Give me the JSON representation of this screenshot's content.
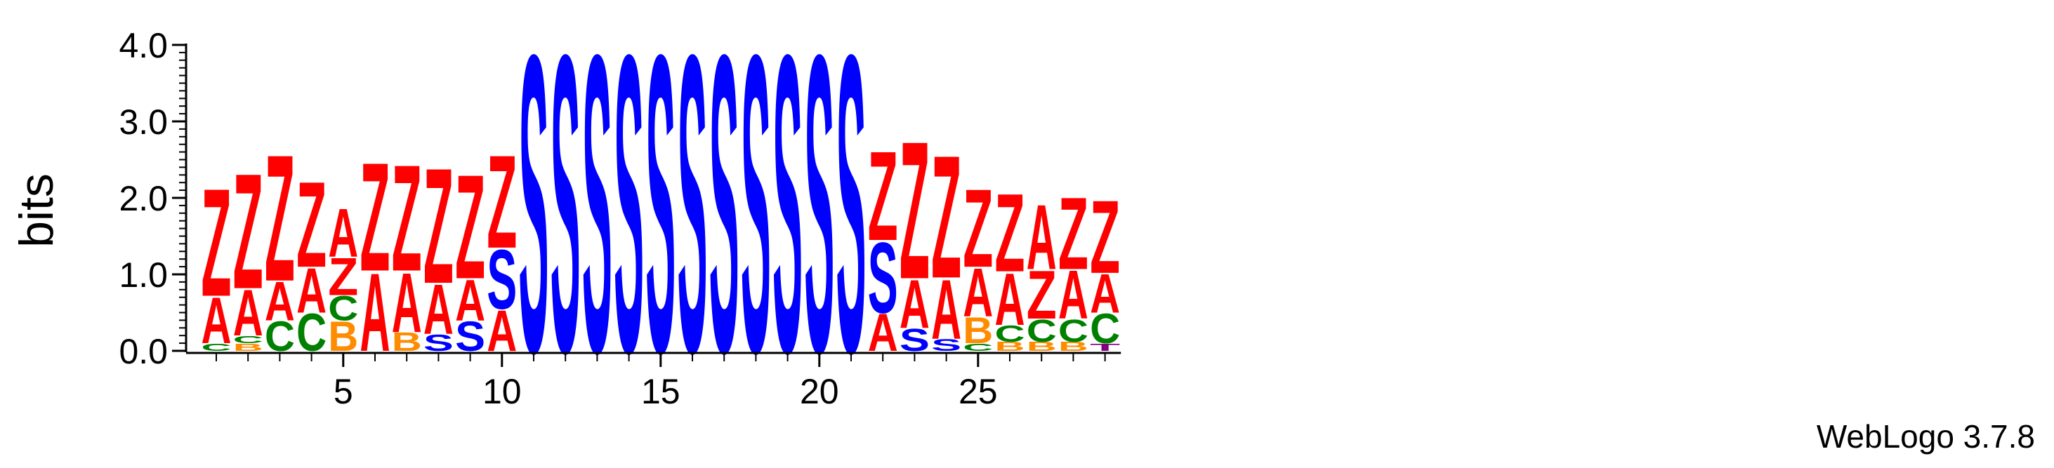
{
  "chart_data": {
    "type": "sequence-logo",
    "ylabel": "bits",
    "ylim": [
      0,
      4.0
    ],
    "y_ticks": [
      "0.0",
      "1.0",
      "2.0",
      "3.0",
      "4.0"
    ],
    "x_ticks": [
      "5",
      "10",
      "15",
      "20",
      "25"
    ],
    "x_tick_positions": [
      5,
      10,
      15,
      20,
      25
    ],
    "colors": {
      "Z": "#ff0000",
      "A": "#ff0000",
      "S": "#0000ff",
      "C": "#008000",
      "B": "#ff8c00",
      "T": "#800080"
    },
    "positions": [
      {
        "x": 1,
        "stack": [
          {
            "letter": "C",
            "bits": 0.1
          },
          {
            "letter": "A",
            "bits": 0.62
          },
          {
            "letter": "Z",
            "bits": 1.45
          }
        ]
      },
      {
        "x": 2,
        "stack": [
          {
            "letter": "B",
            "bits": 0.1
          },
          {
            "letter": "C",
            "bits": 0.1
          },
          {
            "letter": "A",
            "bits": 0.62
          },
          {
            "letter": "Z",
            "bits": 1.55
          }
        ]
      },
      {
        "x": 3,
        "stack": [
          {
            "letter": "C",
            "bits": 0.4
          },
          {
            "letter": "A",
            "bits": 0.52
          },
          {
            "letter": "Z",
            "bits": 1.7
          }
        ]
      },
      {
        "x": 4,
        "stack": [
          {
            "letter": "C",
            "bits": 0.5
          },
          {
            "letter": "A",
            "bits": 0.6
          },
          {
            "letter": "Z",
            "bits": 1.15
          }
        ]
      },
      {
        "x": 5,
        "stack": [
          {
            "letter": "B",
            "bits": 0.4
          },
          {
            "letter": "C",
            "bits": 0.33
          },
          {
            "letter": "Z",
            "bits": 0.5
          },
          {
            "letter": "A",
            "bits": 0.65
          }
        ]
      },
      {
        "x": 6,
        "stack": [
          {
            "letter": "A",
            "bits": 1.05
          },
          {
            "letter": "Z",
            "bits": 1.46
          }
        ]
      },
      {
        "x": 7,
        "stack": [
          {
            "letter": "B",
            "bits": 0.25
          },
          {
            "letter": "A",
            "bits": 0.8
          },
          {
            "letter": "Z",
            "bits": 1.43
          }
        ]
      },
      {
        "x": 8,
        "stack": [
          {
            "letter": "S",
            "bits": 0.22
          },
          {
            "letter": "A",
            "bits": 0.67
          },
          {
            "letter": "Z",
            "bits": 1.55
          }
        ]
      },
      {
        "x": 9,
        "stack": [
          {
            "letter": "S",
            "bits": 0.4
          },
          {
            "letter": "A",
            "bits": 0.55
          },
          {
            "letter": "Z",
            "bits": 1.4
          }
        ]
      },
      {
        "x": 10,
        "stack": [
          {
            "letter": "A",
            "bits": 0.55
          },
          {
            "letter": "S",
            "bits": 0.8
          },
          {
            "letter": "Z",
            "bits": 1.25
          }
        ]
      },
      {
        "x": 11,
        "stack": [
          {
            "letter": "S",
            "bits": 4.0
          }
        ]
      },
      {
        "x": 12,
        "stack": [
          {
            "letter": "S",
            "bits": 4.0
          }
        ]
      },
      {
        "x": 13,
        "stack": [
          {
            "letter": "S",
            "bits": 4.0
          }
        ]
      },
      {
        "x": 14,
        "stack": [
          {
            "letter": "S",
            "bits": 4.0
          }
        ]
      },
      {
        "x": 15,
        "stack": [
          {
            "letter": "S",
            "bits": 4.0
          }
        ]
      },
      {
        "x": 16,
        "stack": [
          {
            "letter": "S",
            "bits": 4.0
          }
        ]
      },
      {
        "x": 17,
        "stack": [
          {
            "letter": "S",
            "bits": 4.0
          }
        ]
      },
      {
        "x": 18,
        "stack": [
          {
            "letter": "S",
            "bits": 4.0
          }
        ]
      },
      {
        "x": 19,
        "stack": [
          {
            "letter": "S",
            "bits": 4.0
          }
        ]
      },
      {
        "x": 20,
        "stack": [
          {
            "letter": "S",
            "bits": 4.0
          }
        ]
      },
      {
        "x": 21,
        "stack": [
          {
            "letter": "S",
            "bits": 4.0
          }
        ]
      },
      {
        "x": 22,
        "stack": [
          {
            "letter": "A",
            "bits": 0.5
          },
          {
            "letter": "S",
            "bits": 0.95
          },
          {
            "letter": "Z",
            "bits": 1.2
          }
        ]
      },
      {
        "x": 23,
        "stack": [
          {
            "letter": "S",
            "bits": 0.3
          },
          {
            "letter": "A",
            "bits": 0.65
          },
          {
            "letter": "Z",
            "bits": 1.85
          }
        ]
      },
      {
        "x": 24,
        "stack": [
          {
            "letter": "S",
            "bits": 0.16
          },
          {
            "letter": "A",
            "bits": 0.8
          },
          {
            "letter": "Z",
            "bits": 1.65
          }
        ]
      },
      {
        "x": 25,
        "stack": [
          {
            "letter": "C",
            "bits": 0.1
          },
          {
            "letter": "B",
            "bits": 0.35
          },
          {
            "letter": "A",
            "bits": 0.65
          },
          {
            "letter": "Z",
            "bits": 1.05
          }
        ]
      },
      {
        "x": 26,
        "stack": [
          {
            "letter": "B",
            "bits": 0.12
          },
          {
            "letter": "C",
            "bits": 0.22
          },
          {
            "letter": "A",
            "bits": 0.7
          },
          {
            "letter": "Z",
            "bits": 1.05
          }
        ]
      },
      {
        "x": 27,
        "stack": [
          {
            "letter": "B",
            "bits": 0.12
          },
          {
            "letter": "C",
            "bits": 0.3
          },
          {
            "letter": "Z",
            "bits": 0.65
          },
          {
            "letter": "A",
            "bits": 0.87
          }
        ]
      },
      {
        "x": 28,
        "stack": [
          {
            "letter": "B",
            "bits": 0.12
          },
          {
            "letter": "C",
            "bits": 0.3
          },
          {
            "letter": "A",
            "bits": 0.65
          },
          {
            "letter": "Z",
            "bits": 0.97
          }
        ]
      },
      {
        "x": 29,
        "stack": [
          {
            "letter": "T",
            "bits": 0.1
          },
          {
            "letter": "C",
            "bits": 0.4
          },
          {
            "letter": "A",
            "bits": 0.52
          },
          {
            "letter": "Z",
            "bits": 0.98
          }
        ]
      }
    ]
  },
  "credit": "WebLogo 3.7.8"
}
